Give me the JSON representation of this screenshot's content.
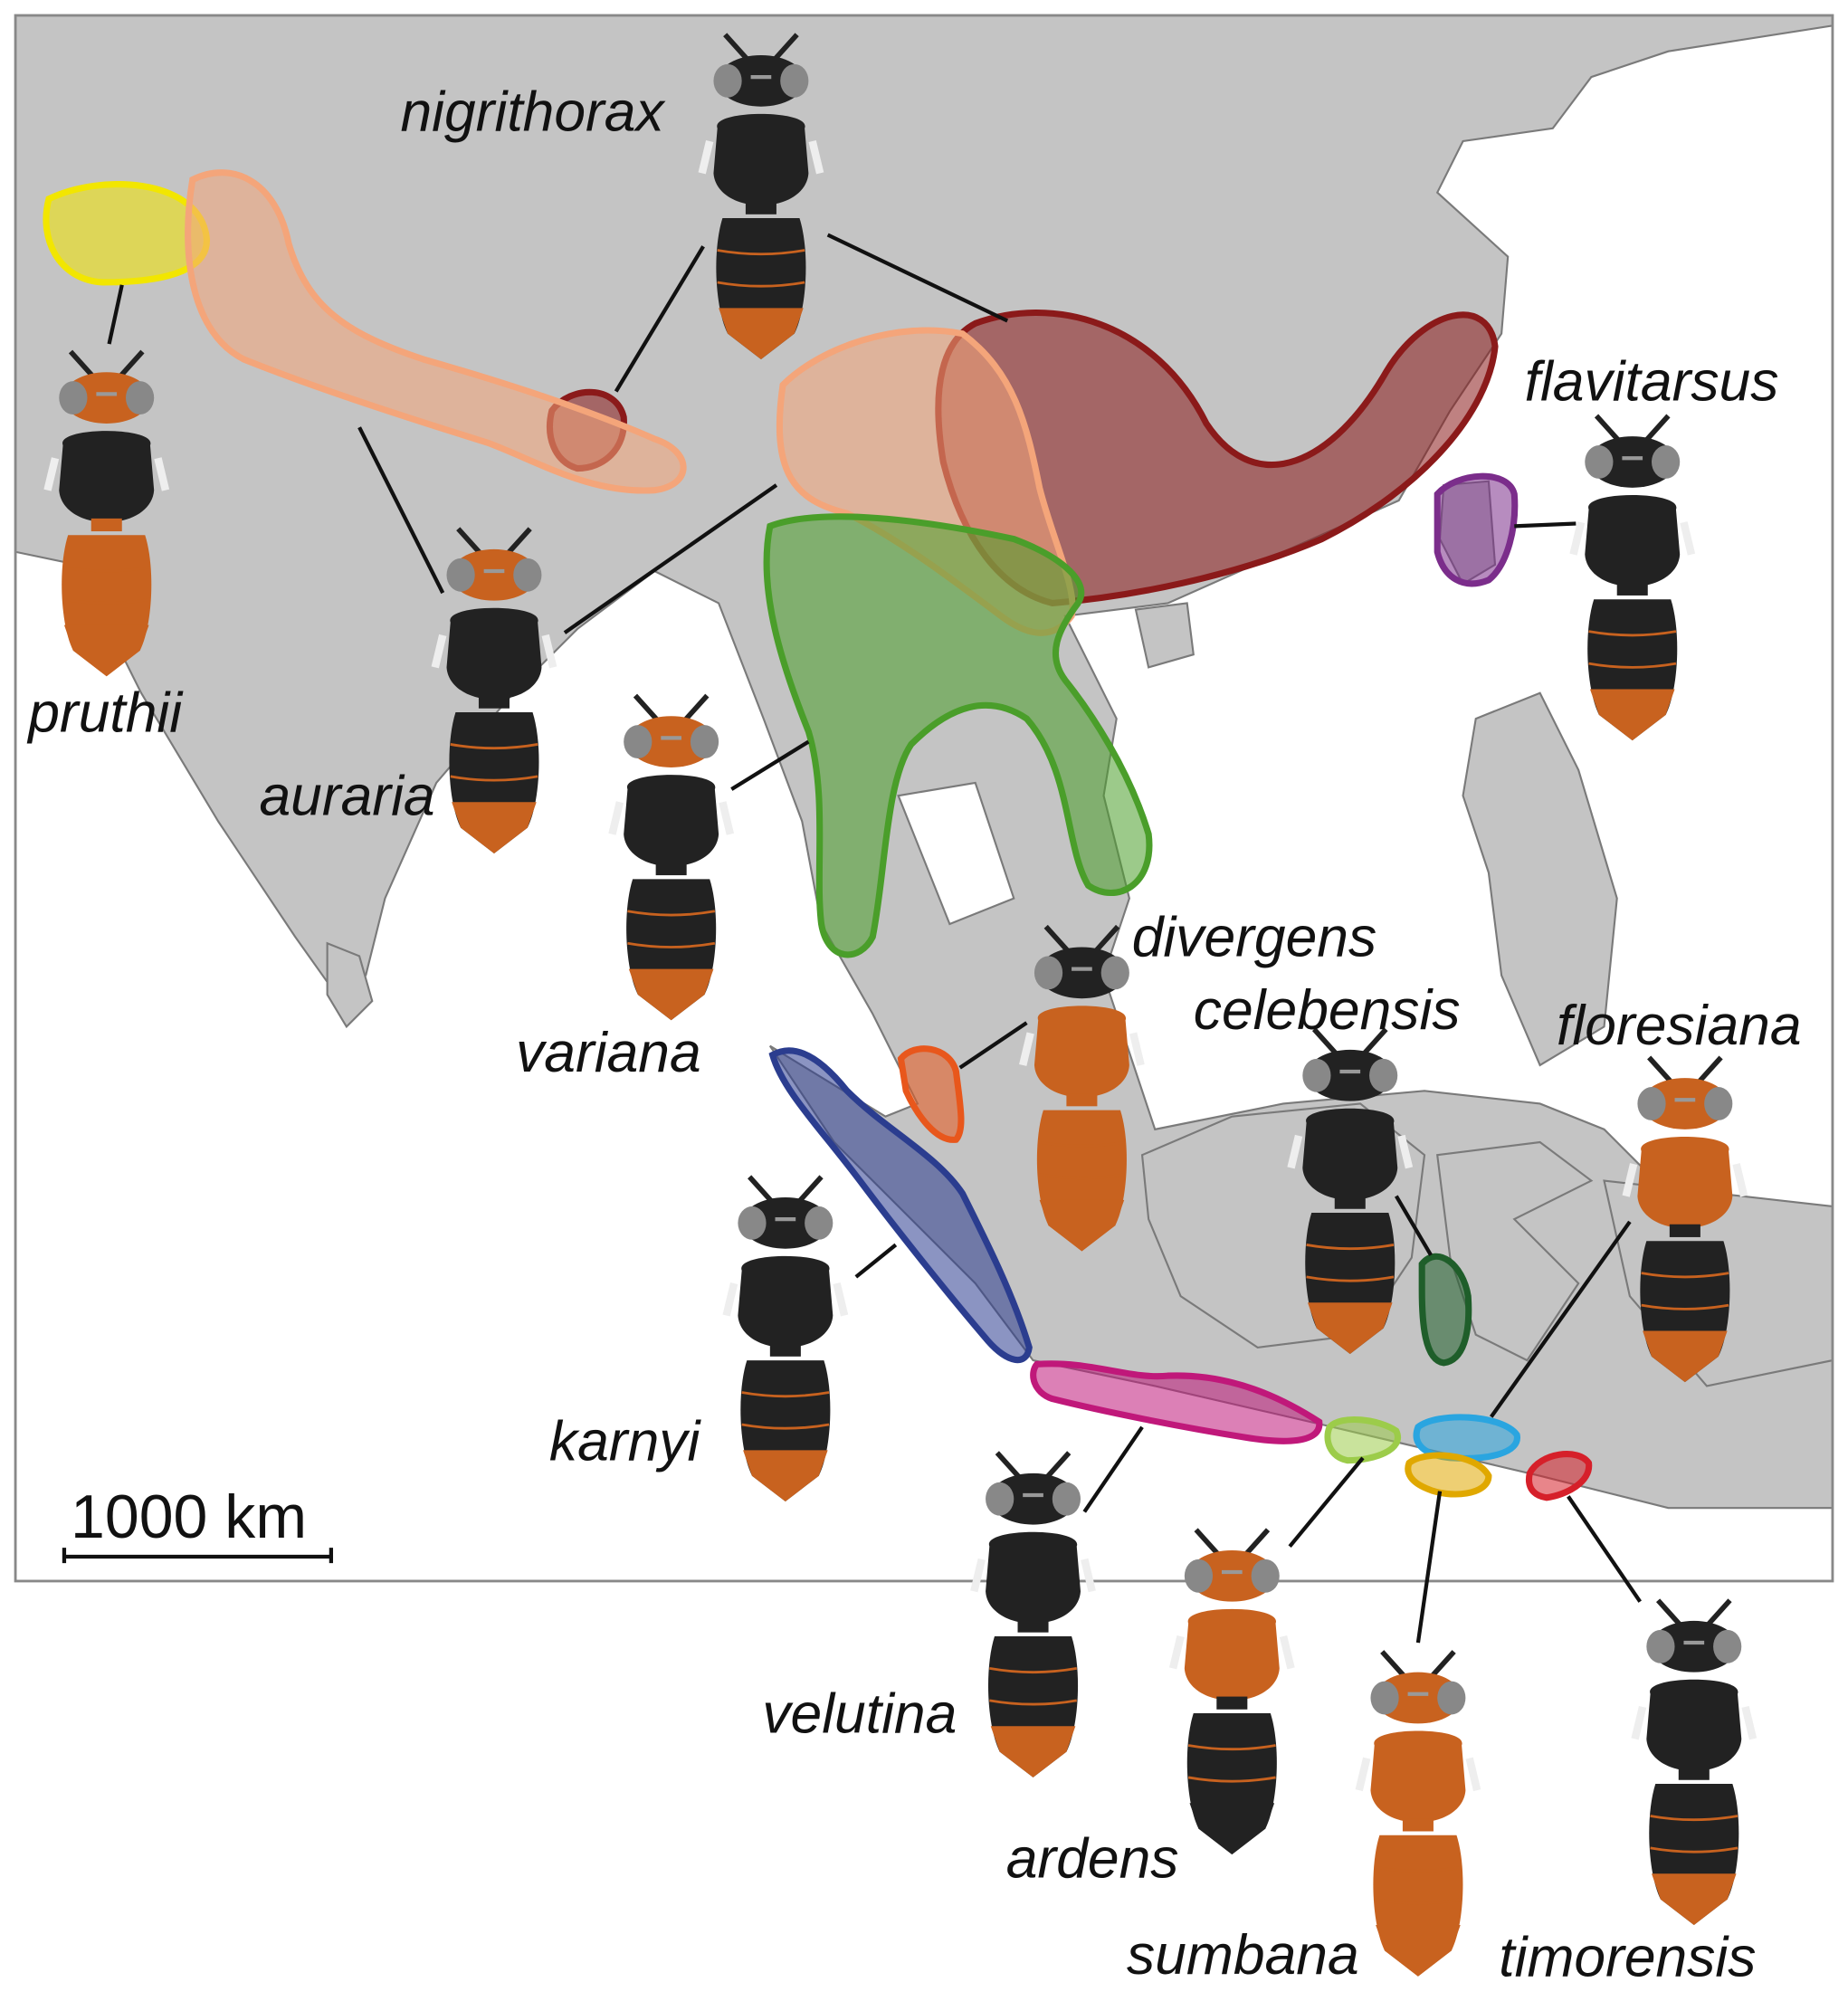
{
  "scale_bar": {
    "label": "1000 km"
  },
  "colors": {
    "land": "#c4c4c4",
    "border": "#7a7a7a",
    "ocean": "#ffffff",
    "wasp_black": "#222222",
    "wasp_orange": "#c8621f"
  },
  "species": [
    {
      "name": "nigrithorax",
      "range_color": "#8b1a1a",
      "head": "black",
      "thorax": "black",
      "abdomen": "black",
      "tip": "orange"
    },
    {
      "name": "pruthii",
      "range_color": "#f2e600",
      "head": "orange",
      "thorax": "black",
      "abdomen": "orange",
      "tip": "orange"
    },
    {
      "name": "auraria",
      "range_color": "#f4a57a",
      "head": "orange",
      "thorax": "black",
      "abdomen": "black",
      "tip": "orange"
    },
    {
      "name": "variana",
      "range_color": "#4a9e2a",
      "head": "orange",
      "thorax": "black",
      "abdomen": "black",
      "tip": "orange"
    },
    {
      "name": "flavitarsus",
      "range_color": "#7b2d8b",
      "head": "black",
      "thorax": "black",
      "abdomen": "black",
      "tip": "orange"
    },
    {
      "name": "divergens",
      "range_color": "#e8571c",
      "head": "black",
      "thorax": "orange",
      "abdomen": "orange",
      "tip": "orange"
    },
    {
      "name": "celebensis",
      "range_color": "#1f5e2a",
      "head": "black",
      "thorax": "black",
      "abdomen": "black",
      "tip": "orange"
    },
    {
      "name": "floresiana",
      "range_color": "#2aa5e0",
      "head": "orange",
      "thorax": "orange",
      "abdomen": "black",
      "tip": "orange"
    },
    {
      "name": "karnyi",
      "range_color": "#2b3d8f",
      "head": "black",
      "thorax": "black",
      "abdomen": "black",
      "tip": "orange"
    },
    {
      "name": "velutina",
      "range_color": "#c0187a",
      "head": "black",
      "thorax": "black",
      "abdomen": "black",
      "tip": "orange"
    },
    {
      "name": "ardens",
      "range_color": "#9ccc4a",
      "head": "orange",
      "thorax": "orange",
      "abdomen": "black",
      "tip": "black"
    },
    {
      "name": "sumbana",
      "range_color": "#e0a800",
      "head": "orange",
      "thorax": "orange",
      "abdomen": "orange",
      "tip": "orange"
    },
    {
      "name": "timorensis",
      "range_color": "#d6202a",
      "head": "black",
      "thorax": "black",
      "abdomen": "black",
      "tip": "orange"
    }
  ]
}
